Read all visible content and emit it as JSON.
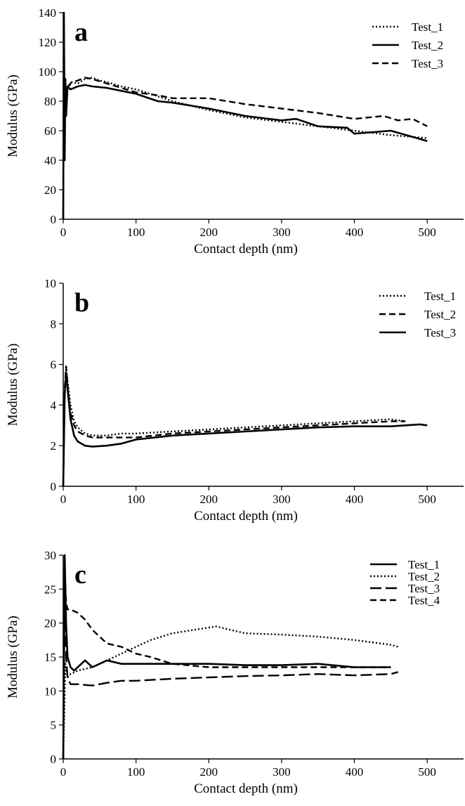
{
  "chart_data": [
    {
      "type": "line",
      "panel_label": "a",
      "xlabel": "Contact depth (nm)",
      "ylabel": "Modulus (GPa)",
      "xlim": [
        0,
        550
      ],
      "ylim": [
        0,
        140
      ],
      "xticks": [
        0,
        100,
        200,
        300,
        400,
        500
      ],
      "yticks": [
        0,
        20,
        40,
        60,
        80,
        100,
        120,
        140
      ],
      "grid": false,
      "legend_position": "top-right",
      "series": [
        {
          "name": "Test_1",
          "dash": "dotted",
          "x": [
            0,
            1,
            2,
            3,
            5,
            8,
            12,
            20,
            30,
            40,
            50,
            60,
            80,
            100,
            120,
            150,
            200,
            250,
            300,
            350,
            400,
            450,
            500
          ],
          "y": [
            0,
            128,
            80,
            92,
            88,
            90,
            93,
            92,
            95,
            96,
            94,
            93,
            90,
            88,
            85,
            80,
            74,
            69,
            66,
            63,
            60,
            57,
            55
          ]
        },
        {
          "name": "Test_2",
          "dash": "solid",
          "x": [
            0,
            1,
            2,
            3,
            4,
            6,
            10,
            20,
            30,
            40,
            60,
            80,
            100,
            130,
            150,
            200,
            250,
            300,
            320,
            350,
            390,
            400,
            450,
            500
          ],
          "y": [
            0,
            140,
            40,
            95,
            70,
            90,
            88,
            90,
            91,
            90,
            89,
            87,
            85,
            80,
            79,
            75,
            70,
            67,
            68,
            63,
            62,
            58,
            60,
            53
          ]
        },
        {
          "name": "Test_3",
          "dash": "dashed",
          "x": [
            0,
            1,
            2,
            3,
            5,
            8,
            12,
            20,
            30,
            40,
            60,
            80,
            100,
            130,
            150,
            200,
            250,
            300,
            350,
            400,
            440,
            460,
            480,
            500
          ],
          "y": [
            0,
            105,
            60,
            85,
            88,
            91,
            93,
            94,
            96,
            95,
            92,
            89,
            86,
            84,
            82,
            82,
            78,
            75,
            72,
            68,
            70,
            67,
            68,
            63
          ]
        }
      ]
    },
    {
      "type": "line",
      "panel_label": "b",
      "xlabel": "Contact depth (nm)",
      "ylabel": "Modulus (GPa)",
      "xlim": [
        0,
        550
      ],
      "ylim": [
        0,
        10
      ],
      "xticks": [
        0,
        100,
        200,
        300,
        400,
        500
      ],
      "yticks": [
        0,
        2,
        4,
        6,
        8,
        10
      ],
      "grid": false,
      "legend_position": "top-right",
      "series": [
        {
          "name": "Test_1",
          "dash": "dotted",
          "x": [
            0,
            2,
            4,
            6,
            10,
            15,
            20,
            30,
            40,
            60,
            80,
            100,
            150,
            200,
            250,
            300,
            350,
            400,
            450,
            470
          ],
          "y": [
            0,
            4.5,
            5.8,
            5.2,
            4.0,
            3.2,
            2.9,
            2.6,
            2.5,
            2.5,
            2.6,
            2.6,
            2.7,
            2.8,
            2.9,
            3.0,
            3.1,
            3.2,
            3.3,
            3.2
          ]
        },
        {
          "name": "Test_2",
          "dash": "dashed",
          "x": [
            0,
            2,
            4,
            6,
            10,
            15,
            20,
            30,
            40,
            60,
            80,
            100,
            150,
            200,
            250,
            300,
            350,
            400,
            450,
            470
          ],
          "y": [
            0,
            4.8,
            5.9,
            5.0,
            3.6,
            3.0,
            2.7,
            2.5,
            2.4,
            2.4,
            2.4,
            2.4,
            2.6,
            2.7,
            2.8,
            2.9,
            3.0,
            3.1,
            3.2,
            3.2
          ]
        },
        {
          "name": "Test_3",
          "dash": "solid",
          "x": [
            0,
            2,
            4,
            6,
            10,
            15,
            20,
            30,
            40,
            60,
            80,
            100,
            150,
            200,
            250,
            300,
            350,
            400,
            450,
            490,
            500
          ],
          "y": [
            0,
            4.5,
            5.6,
            4.8,
            3.3,
            2.5,
            2.2,
            2.0,
            1.95,
            2.0,
            2.1,
            2.3,
            2.5,
            2.6,
            2.7,
            2.8,
            2.9,
            2.95,
            2.95,
            3.05,
            3.0
          ]
        }
      ]
    },
    {
      "type": "line",
      "panel_label": "c",
      "xlabel": "Contact depth (nm)",
      "ylabel": "Modulus (GPa)",
      "xlim": [
        0,
        550
      ],
      "ylim": [
        0,
        30
      ],
      "xticks": [
        0,
        100,
        200,
        300,
        400,
        500
      ],
      "yticks": [
        0,
        5,
        10,
        15,
        20,
        25,
        30
      ],
      "grid": false,
      "legend_position": "top-right",
      "series": [
        {
          "name": "Test_1",
          "dash": "solid",
          "x": [
            0,
            2,
            4,
            6,
            10,
            15,
            20,
            30,
            40,
            60,
            80,
            100,
            150,
            200,
            250,
            300,
            350,
            400,
            450
          ],
          "y": [
            0,
            30,
            20,
            15,
            13.5,
            13.0,
            13.5,
            14.5,
            13.5,
            14.5,
            14.0,
            14.0,
            14.0,
            14.0,
            13.8,
            13.8,
            14.0,
            13.5,
            13.5
          ]
        },
        {
          "name": "Test_2",
          "dash": "dotted",
          "x": [
            0,
            3,
            6,
            10,
            20,
            40,
            60,
            80,
            100,
            120,
            150,
            180,
            210,
            250,
            300,
            350,
            400,
            450,
            460
          ],
          "y": [
            0,
            14,
            12,
            12.5,
            13.0,
            13.5,
            14.5,
            15.5,
            16.5,
            17.5,
            18.5,
            19.0,
            19.5,
            18.5,
            18.3,
            18.0,
            17.5,
            16.8,
            16.5
          ]
        },
        {
          "name": "Test_3",
          "dash": "longdash",
          "x": [
            0,
            2,
            4,
            6,
            10,
            20,
            40,
            60,
            80,
            100,
            150,
            200,
            250,
            300,
            350,
            400,
            450,
            460
          ],
          "y": [
            0,
            25,
            15,
            12,
            11.0,
            11.0,
            10.8,
            11.2,
            11.5,
            11.5,
            11.8,
            12.0,
            12.2,
            12.3,
            12.5,
            12.3,
            12.5,
            12.8
          ]
        },
        {
          "name": "Test_4",
          "dash": "dashed",
          "x": [
            0,
            2,
            4,
            6,
            10,
            20,
            30,
            40,
            50,
            60,
            80,
            100,
            120,
            150,
            200,
            250,
            300,
            350,
            400,
            450
          ],
          "y": [
            0,
            28,
            23,
            22,
            22,
            21.5,
            20.5,
            19.0,
            18.0,
            17.0,
            16.5,
            15.5,
            15.0,
            14.0,
            13.5,
            13.5,
            13.5,
            13.5,
            13.5,
            13.5
          ]
        }
      ]
    }
  ]
}
